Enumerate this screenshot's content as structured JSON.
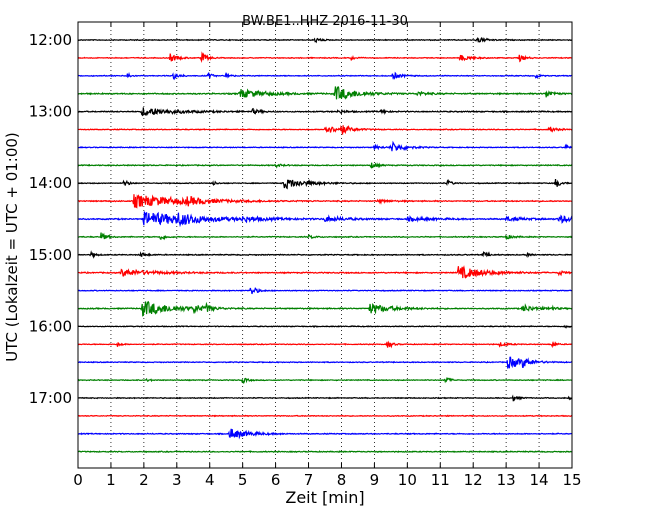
{
  "chart_data": {
    "type": "line",
    "title": "BW.BE1..HHZ 2016-11-30",
    "xlabel": "Zeit  [min]",
    "ylabel": "UTC (Lokalzeit = UTC + 01:00)",
    "xlim": [
      0,
      15
    ],
    "x_ticks": [
      0,
      1,
      2,
      3,
      4,
      5,
      6,
      7,
      8,
      9,
      10,
      11,
      12,
      13,
      14,
      15
    ],
    "x_tick_labels": [
      "0",
      "1",
      "2",
      "3",
      "4",
      "5",
      "6",
      "7",
      "8",
      "9",
      "10",
      "11",
      "12",
      "13",
      "14",
      "15"
    ],
    "y_tick_labels": [
      "12:00",
      "13:00",
      "14:00",
      "15:00",
      "16:00",
      "17:00"
    ],
    "grid": {
      "vertical_dotted": true
    },
    "trace_colors": [
      "#000000",
      "#ff0000",
      "#0000ff",
      "#008000"
    ],
    "traces": [
      {
        "label": "12:00",
        "color": "#000000",
        "noise": 0.35,
        "events": [
          {
            "x": 7.2,
            "amp": 2.5,
            "dur": 0.15
          },
          {
            "x": 12.1,
            "amp": 3.0,
            "dur": 0.25
          }
        ]
      },
      {
        "label": "12:15",
        "color": "#ff0000",
        "noise": 0.35,
        "events": [
          {
            "x": 2.8,
            "amp": 4.0,
            "dur": 0.2
          },
          {
            "x": 3.75,
            "amp": 5.0,
            "dur": 0.15
          },
          {
            "x": 8.3,
            "amp": 2.5,
            "dur": 0.1
          },
          {
            "x": 11.6,
            "amp": 3.0,
            "dur": 0.3
          },
          {
            "x": 13.4,
            "amp": 3.5,
            "dur": 0.15
          }
        ]
      },
      {
        "label": "12:30",
        "color": "#0000ff",
        "noise": 0.35,
        "events": [
          {
            "x": 1.5,
            "amp": 3.0,
            "dur": 0.1
          },
          {
            "x": 2.9,
            "amp": 3.5,
            "dur": 0.15
          },
          {
            "x": 3.95,
            "amp": 3.5,
            "dur": 0.1
          },
          {
            "x": 4.5,
            "amp": 3.0,
            "dur": 0.1
          },
          {
            "x": 9.55,
            "amp": 4.0,
            "dur": 0.2
          },
          {
            "x": 13.9,
            "amp": 2.5,
            "dur": 0.1
          }
        ]
      },
      {
        "label": "12:45",
        "color": "#008000",
        "noise": 0.5,
        "events": [
          {
            "x": 4.9,
            "amp": 4.5,
            "dur": 0.7
          },
          {
            "x": 7.8,
            "amp": 7.5,
            "dur": 0.6
          },
          {
            "x": 10.3,
            "amp": 2.0,
            "dur": 0.3
          },
          {
            "x": 14.2,
            "amp": 4.0,
            "dur": 0.2
          }
        ]
      },
      {
        "label": "13:00",
        "color": "#000000",
        "noise": 0.45,
        "events": [
          {
            "x": 1.95,
            "amp": 4.5,
            "dur": 0.9
          },
          {
            "x": 5.3,
            "amp": 2.5,
            "dur": 0.2
          },
          {
            "x": 7.9,
            "amp": 2.0,
            "dur": 0.2
          },
          {
            "x": 9.2,
            "amp": 2.0,
            "dur": 0.15
          }
        ]
      },
      {
        "label": "13:15",
        "color": "#ff0000",
        "noise": 0.35,
        "events": [
          {
            "x": 7.5,
            "amp": 4.0,
            "dur": 0.5
          },
          {
            "x": 8.0,
            "amp": 4.0,
            "dur": 0.2
          },
          {
            "x": 14.3,
            "amp": 3.0,
            "dur": 0.2
          }
        ]
      },
      {
        "label": "13:30",
        "color": "#0000ff",
        "noise": 0.35,
        "events": [
          {
            "x": 9.5,
            "amp": 5.5,
            "dur": 0.35
          },
          {
            "x": 9.0,
            "amp": 2.0,
            "dur": 0.2
          },
          {
            "x": 14.8,
            "amp": 2.5,
            "dur": 0.1
          }
        ]
      },
      {
        "label": "13:45",
        "color": "#008000",
        "noise": 0.4,
        "events": [
          {
            "x": 8.9,
            "amp": 3.0,
            "dur": 0.15
          },
          {
            "x": 6.0,
            "amp": 1.5,
            "dur": 0.2
          }
        ]
      },
      {
        "label": "14:00",
        "color": "#000000",
        "noise": 0.35,
        "events": [
          {
            "x": 1.4,
            "amp": 4.0,
            "dur": 0.12
          },
          {
            "x": 6.25,
            "amp": 5.5,
            "dur": 0.6
          },
          {
            "x": 4.1,
            "amp": 2.0,
            "dur": 0.1
          },
          {
            "x": 11.2,
            "amp": 3.5,
            "dur": 0.12
          },
          {
            "x": 14.5,
            "amp": 4.5,
            "dur": 0.15
          }
        ]
      },
      {
        "label": "14:15",
        "color": "#ff0000",
        "noise": 0.45,
        "events": [
          {
            "x": 1.7,
            "amp": 6.5,
            "dur": 1.4
          },
          {
            "x": 3.3,
            "amp": 3.0,
            "dur": 0.4
          },
          {
            "x": 9.1,
            "amp": 1.5,
            "dur": 0.3
          }
        ]
      },
      {
        "label": "14:30",
        "color": "#0000ff",
        "noise": 0.5,
        "events": [
          {
            "x": 2.0,
            "amp": 7.0,
            "dur": 1.5
          },
          {
            "x": 3.0,
            "amp": 3.5,
            "dur": 0.5
          },
          {
            "x": 5.0,
            "amp": 2.0,
            "dur": 0.5
          },
          {
            "x": 7.5,
            "amp": 2.5,
            "dur": 0.6
          },
          {
            "x": 10.0,
            "amp": 2.0,
            "dur": 0.6
          },
          {
            "x": 13.0,
            "amp": 2.0,
            "dur": 0.5
          },
          {
            "x": 14.6,
            "amp": 4.0,
            "dur": 0.4
          }
        ]
      },
      {
        "label": "14:45",
        "color": "#008000",
        "noise": 0.4,
        "events": [
          {
            "x": 0.7,
            "amp": 4.0,
            "dur": 0.15
          },
          {
            "x": 2.5,
            "amp": 3.0,
            "dur": 0.15
          },
          {
            "x": 7.0,
            "amp": 1.5,
            "dur": 0.2
          },
          {
            "x": 13.0,
            "amp": 2.0,
            "dur": 0.2
          }
        ]
      },
      {
        "label": "15:00",
        "color": "#000000",
        "noise": 0.4,
        "events": [
          {
            "x": 0.4,
            "amp": 3.5,
            "dur": 0.1
          },
          {
            "x": 1.9,
            "amp": 2.5,
            "dur": 0.15
          },
          {
            "x": 12.3,
            "amp": 2.5,
            "dur": 0.15
          },
          {
            "x": 13.6,
            "amp": 2.0,
            "dur": 0.1
          }
        ]
      },
      {
        "label": "15:15",
        "color": "#ff0000",
        "noise": 0.45,
        "events": [
          {
            "x": 1.3,
            "amp": 3.5,
            "dur": 0.9
          },
          {
            "x": 11.55,
            "amp": 6.5,
            "dur": 0.7
          },
          {
            "x": 14.6,
            "amp": 3.5,
            "dur": 0.1
          }
        ]
      },
      {
        "label": "15:30",
        "color": "#0000ff",
        "noise": 0.35,
        "events": [
          {
            "x": 5.25,
            "amp": 5.5,
            "dur": 0.15
          }
        ]
      },
      {
        "label": "15:45",
        "color": "#008000",
        "noise": 0.45,
        "events": [
          {
            "x": 1.95,
            "amp": 8.0,
            "dur": 0.8
          },
          {
            "x": 3.5,
            "amp": 3.5,
            "dur": 0.25
          },
          {
            "x": 3.9,
            "amp": 3.0,
            "dur": 0.15
          },
          {
            "x": 8.85,
            "amp": 5.0,
            "dur": 0.6
          },
          {
            "x": 13.5,
            "amp": 4.0,
            "dur": 0.3
          },
          {
            "x": 14.3,
            "amp": 2.5,
            "dur": 0.15
          }
        ]
      },
      {
        "label": "16:00",
        "color": "#000000",
        "noise": 0.35,
        "events": [
          {
            "x": 14.8,
            "amp": 2.0,
            "dur": 0.1
          }
        ]
      },
      {
        "label": "16:15",
        "color": "#ff0000",
        "noise": 0.35,
        "events": [
          {
            "x": 1.2,
            "amp": 2.5,
            "dur": 0.1
          },
          {
            "x": 9.4,
            "amp": 4.5,
            "dur": 0.12
          },
          {
            "x": 12.8,
            "amp": 2.0,
            "dur": 0.2
          },
          {
            "x": 14.4,
            "amp": 3.0,
            "dur": 0.1
          }
        ]
      },
      {
        "label": "16:30",
        "color": "#0000ff",
        "noise": 0.35,
        "events": [
          {
            "x": 13.05,
            "amp": 6.0,
            "dur": 0.45
          },
          {
            "x": 13.5,
            "amp": 3.5,
            "dur": 0.2
          }
        ]
      },
      {
        "label": "16:45",
        "color": "#008000",
        "noise": 0.35,
        "events": [
          {
            "x": 5.0,
            "amp": 3.0,
            "dur": 0.12
          },
          {
            "x": 11.15,
            "amp": 3.5,
            "dur": 0.12
          },
          {
            "x": 2.1,
            "amp": 1.5,
            "dur": 0.1
          }
        ]
      },
      {
        "label": "17:00",
        "color": "#000000",
        "noise": 0.35,
        "events": [
          {
            "x": 13.2,
            "amp": 3.0,
            "dur": 0.15
          },
          {
            "x": 14.9,
            "amp": 2.5,
            "dur": 0.1
          }
        ]
      },
      {
        "label": "17:15",
        "color": "#ff0000",
        "noise": 0.35,
        "events": []
      },
      {
        "label": "17:30",
        "color": "#0000ff",
        "noise": 0.4,
        "events": [
          {
            "x": 4.6,
            "amp": 5.5,
            "dur": 0.5
          }
        ]
      },
      {
        "label": "17:45",
        "color": "#008000",
        "noise": 0.4,
        "events": []
      }
    ]
  }
}
